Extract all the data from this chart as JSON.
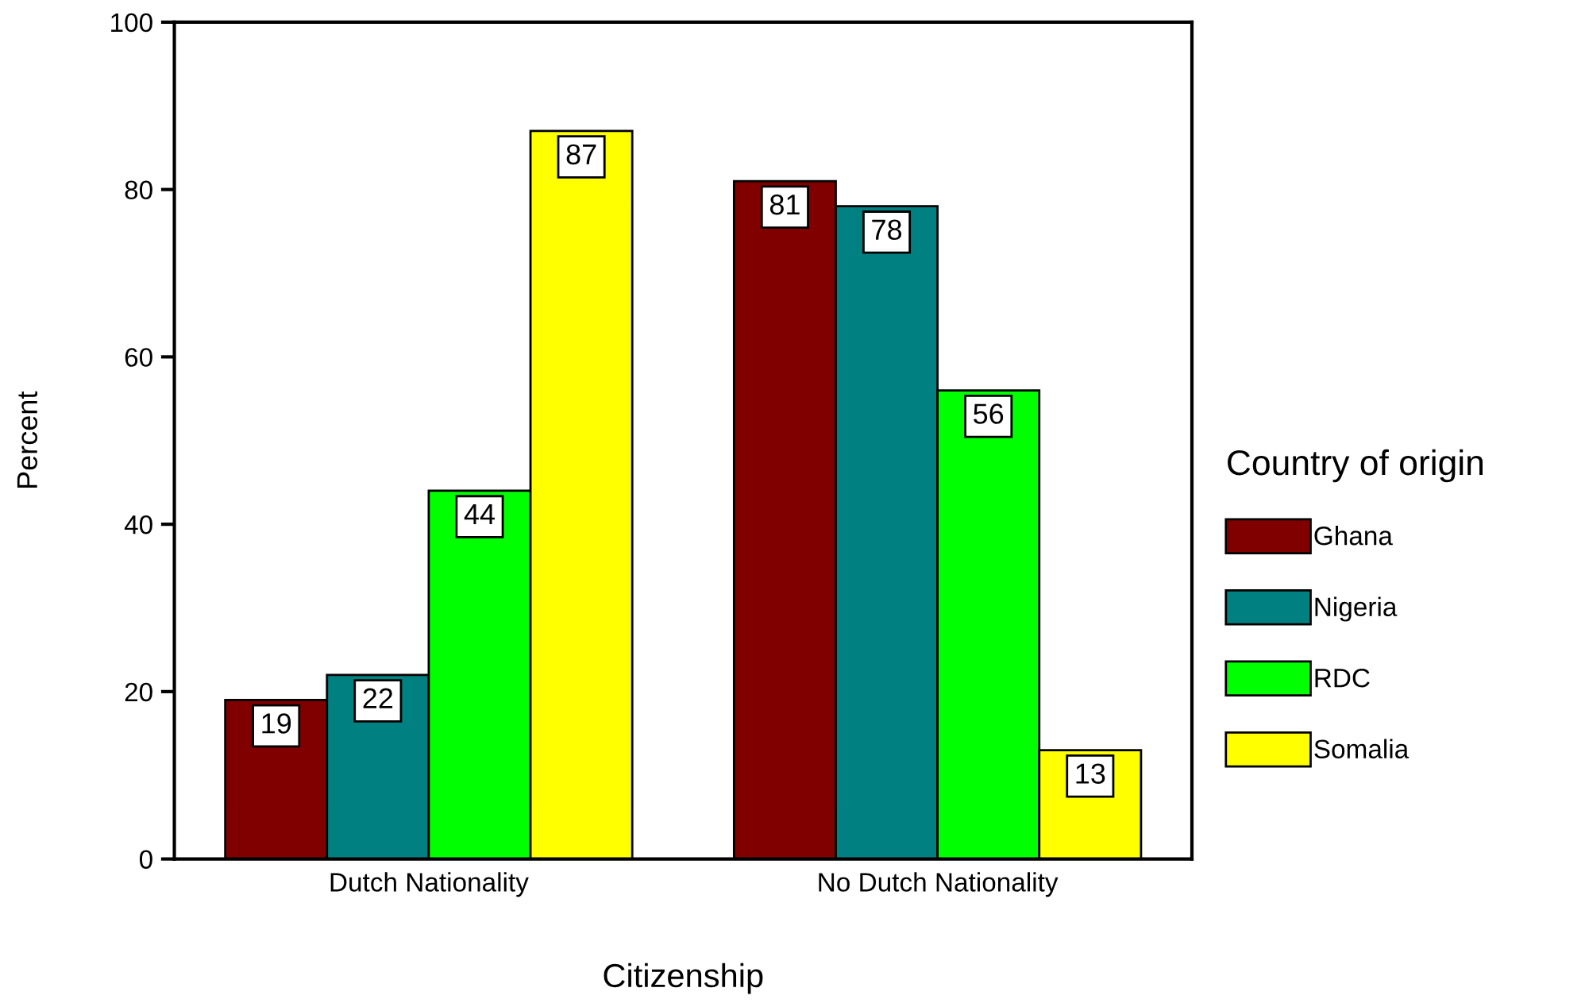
{
  "chart_data": {
    "type": "bar",
    "xlabel": "Citizenship",
    "ylabel": "Percent",
    "legend_title": "Country of origin",
    "categories": [
      "Dutch Nationality",
      "No Dutch Nationality"
    ],
    "series": [
      {
        "name": "Ghana",
        "color": "#800000",
        "values": [
          19,
          81
        ]
      },
      {
        "name": "Nigeria",
        "color": "#008080",
        "values": [
          22,
          78
        ]
      },
      {
        "name": "RDC",
        "color": "#00ff00",
        "values": [
          44,
          56
        ]
      },
      {
        "name": "Somalia",
        "color": "#ffff00",
        "values": [
          87,
          13
        ]
      }
    ],
    "ylim": [
      0,
      100
    ],
    "yticks": [
      0,
      20,
      40,
      60,
      80,
      100
    ],
    "data_labels": true,
    "legend": "right",
    "grid": false
  }
}
